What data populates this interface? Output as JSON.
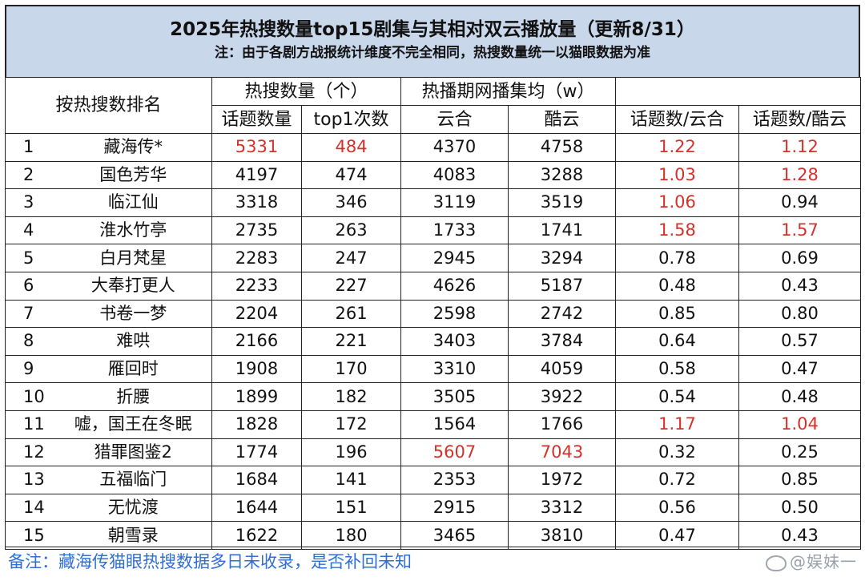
{
  "title": "2025年热搜数量top15剧集与其相对双云播放量（更新8/31）",
  "note": "注：由于各剧方战报统计维度不完全相同，热搜数量统一以猫眼数据为准",
  "headers": {
    "rank_by": "按热搜数排名",
    "group_hot": "热搜数量（个）",
    "group_play": "热播期网播集均（w）",
    "topics": "话题数量",
    "top1": "top1次数",
    "yunhe": "云合",
    "kuyun": "酷云",
    "ratio_yunhe": "话题数/云合",
    "ratio_kuyun": "话题数/酷云"
  },
  "highlight_color": "#d6302a",
  "rows": [
    {
      "rank": "1",
      "name": "藏海传*",
      "topics": "5331",
      "top1": "484",
      "yunhe": "4370",
      "kuyun": "4758",
      "r1": "1.22",
      "r2": "1.12",
      "red": [
        "topics",
        "top1",
        "r1",
        "r2"
      ]
    },
    {
      "rank": "2",
      "name": "国色芳华",
      "topics": "4197",
      "top1": "474",
      "yunhe": "4083",
      "kuyun": "3288",
      "r1": "1.03",
      "r2": "1.28",
      "red": [
        "r1",
        "r2"
      ]
    },
    {
      "rank": "3",
      "name": "临江仙",
      "topics": "3318",
      "top1": "346",
      "yunhe": "3119",
      "kuyun": "3519",
      "r1": "1.06",
      "r2": "0.94",
      "red": [
        "r1"
      ]
    },
    {
      "rank": "4",
      "name": "淮水竹亭",
      "topics": "2735",
      "top1": "263",
      "yunhe": "1733",
      "kuyun": "1741",
      "r1": "1.58",
      "r2": "1.57",
      "red": [
        "r1",
        "r2"
      ]
    },
    {
      "rank": "5",
      "name": "白月梵星",
      "topics": "2283",
      "top1": "247",
      "yunhe": "2945",
      "kuyun": "3294",
      "r1": "0.78",
      "r2": "0.69",
      "red": []
    },
    {
      "rank": "6",
      "name": "大奉打更人",
      "topics": "2233",
      "top1": "227",
      "yunhe": "4626",
      "kuyun": "5187",
      "r1": "0.48",
      "r2": "0.43",
      "red": []
    },
    {
      "rank": "7",
      "name": "书卷一梦",
      "topics": "2204",
      "top1": "261",
      "yunhe": "2598",
      "kuyun": "2742",
      "r1": "0.85",
      "r2": "0.80",
      "red": []
    },
    {
      "rank": "8",
      "name": "难哄",
      "topics": "2166",
      "top1": "221",
      "yunhe": "3403",
      "kuyun": "3784",
      "r1": "0.64",
      "r2": "0.57",
      "red": []
    },
    {
      "rank": "9",
      "name": "雁回时",
      "topics": "1908",
      "top1": "170",
      "yunhe": "3310",
      "kuyun": "4059",
      "r1": "0.58",
      "r2": "0.47",
      "red": []
    },
    {
      "rank": "10",
      "name": "折腰",
      "topics": "1899",
      "top1": "182",
      "yunhe": "3505",
      "kuyun": "3922",
      "r1": "0.54",
      "r2": "0.48",
      "red": []
    },
    {
      "rank": "11",
      "name": "嘘，国王在冬眠",
      "topics": "1828",
      "top1": "172",
      "yunhe": "1564",
      "kuyun": "1766",
      "r1": "1.17",
      "r2": "1.04",
      "red": [
        "r1",
        "r2"
      ]
    },
    {
      "rank": "12",
      "name": "猎罪图鉴2",
      "topics": "1774",
      "top1": "196",
      "yunhe": "5607",
      "kuyun": "7043",
      "r1": "0.32",
      "r2": "0.25",
      "red": [
        "yunhe",
        "kuyun"
      ]
    },
    {
      "rank": "13",
      "name": "五福临门",
      "topics": "1684",
      "top1": "141",
      "yunhe": "2353",
      "kuyun": "1972",
      "r1": "0.72",
      "r2": "0.85",
      "red": []
    },
    {
      "rank": "14",
      "name": "无忧渡",
      "topics": "1644",
      "top1": "151",
      "yunhe": "2915",
      "kuyun": "3312",
      "r1": "0.56",
      "r2": "0.50",
      "red": []
    },
    {
      "rank": "15",
      "name": "朝雪录",
      "topics": "1622",
      "top1": "180",
      "yunhe": "3465",
      "kuyun": "3810",
      "r1": "0.47",
      "r2": "0.43",
      "red": []
    }
  ],
  "footer": "备注：藏海传猫眼热搜数据多日未收录，是否补回未知",
  "watermark": "@娱妹一"
}
